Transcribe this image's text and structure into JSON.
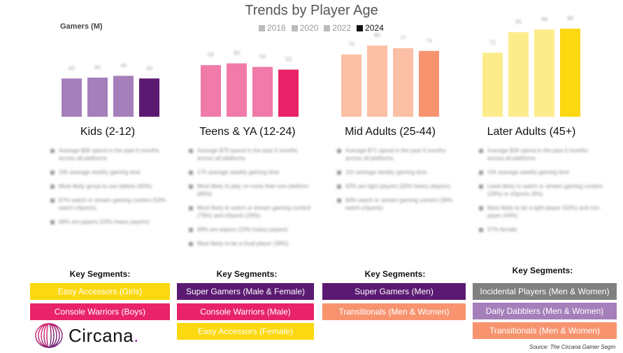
{
  "title": "Trends by Player Age",
  "ylabel": "Gamers (M)",
  "legend": [
    "2018",
    "2020",
    "2022",
    "2024"
  ],
  "legend_colors": [
    "#bbbbbb",
    "#bbbbbb",
    "#bbbbbb",
    "#111111"
  ],
  "chart_data": {
    "type": "bar",
    "title": "Trends by Player Age",
    "ylabel": "Gamers (M)",
    "categories": [
      "Kids (2-12)",
      "Teens & YA (12-24)",
      "Mid Adults (25-44)",
      "Later Adults (45+)"
    ],
    "series": [
      {
        "name": "2018",
        "values": [
          43,
          58,
          70,
          72
        ]
      },
      {
        "name": "2020",
        "values": [
          44,
          60,
          80,
          95
        ]
      },
      {
        "name": "2022",
        "values": [
          46,
          56,
          77,
          98
        ]
      },
      {
        "name": "2024",
        "values": [
          43,
          53,
          74,
          99
        ]
      }
    ],
    "ylim": [
      0,
      110
    ],
    "grid": false,
    "legend_position": "top",
    "group_colors": [
      [
        "#a57fba",
        "#a57fba",
        "#a57fba",
        "#5b1a72"
      ],
      [
        "#f07aa8",
        "#f07aa8",
        "#f07aa8",
        "#e8236a"
      ],
      [
        "#fbbfa5",
        "#fbbfa5",
        "#fbbfa5",
        "#f7946f"
      ],
      [
        "#fdec8c",
        "#fdec8c",
        "#fdec8c",
        "#fbd80f"
      ]
    ]
  },
  "groups": [
    {
      "label": "Kids (2-12)",
      "bullets": [
        "Average $69 spend in the past 6 months across all platforms",
        "10h average weekly gaming time",
        "Most likely group to use tablets (60%)",
        "67% watch or stream gaming content (53% watch eSports)",
        "66% are payers (23% heavy payers)"
      ]
    },
    {
      "label": "Teens & YA (12-24)",
      "bullets": [
        "Average $79 spend in the past 6 months across all platforms",
        "17h average weekly gaming time",
        "Most likely to play on more than one platform (86%)",
        "Most likely to watch or stream gaming content (79%) and eSports (29%)",
        "69% are payers (23% heavy payers)",
        "Most likely to be a Dual player (39%)"
      ]
    },
    {
      "label": "Mid Adults (25-44)",
      "bullets": [
        "Average $71 spend in the past 6 months across all platforms",
        "11h average weekly gaming time",
        "62% are light players (20% heavy players)",
        "60% watch or stream gaming content (39% watch eSports)"
      ]
    },
    {
      "label": "Later Adults (45+)",
      "bullets": [
        "Average $36 spend in the past 6 months across all platforms",
        "10h average weekly gaming time",
        "Least likely to watch or stream gaming content (29%) or eSports (9%)",
        "Most likely to be a light player (50%) and non-payer (44%)",
        "57% female"
      ]
    }
  ],
  "segments_heading": "Key Segments:",
  "segments": [
    [
      {
        "label": "Easy Accessors (Girls)",
        "bg": "#fbd80f",
        "fg": "#ffffff"
      },
      {
        "label": "Console Warriors (Boys)",
        "bg": "#e8236a",
        "fg": "#ffffff"
      }
    ],
    [
      {
        "label": "Super Gamers (Male & Female)",
        "bg": "#5b1a72",
        "fg": "#ffffff"
      },
      {
        "label": "Console Warriors (Male)",
        "bg": "#e8236a",
        "fg": "#ffffff"
      },
      {
        "label": "Easy Accessors (Female)",
        "bg": "#fbd80f",
        "fg": "#ffffff"
      }
    ],
    [
      {
        "label": "Super Gamers (Men)",
        "bg": "#5b1a72",
        "fg": "#ffffff"
      },
      {
        "label": "Transitionals (Men & Women)",
        "bg": "#f7946f",
        "fg": "#ffffff"
      }
    ],
    [
      {
        "label": "Incidental Players (Men & Women)",
        "bg": "#808080",
        "fg": "#ffffff"
      },
      {
        "label": "Daily Dabblers (Men & Women)",
        "bg": "#a57fba",
        "fg": "#ffffff"
      },
      {
        "label": "Transitionals (Men & Women)",
        "bg": "#f7946f",
        "fg": "#ffffff"
      }
    ]
  ],
  "logo": {
    "text": "Circana",
    "dot": "."
  },
  "source": "Source: The Circana Gamer Segm"
}
